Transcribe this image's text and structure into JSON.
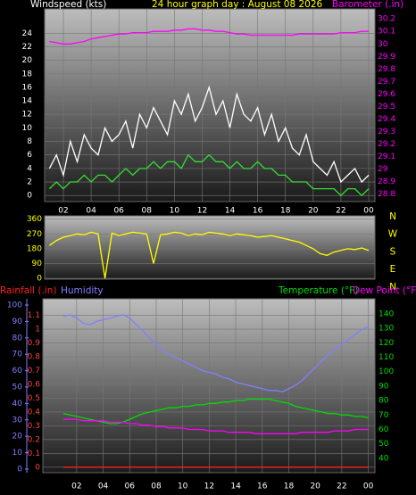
{
  "chart_data": [
    {
      "type": "line",
      "title": "24 hour graph day : August 08 2026",
      "ylabel": "Windspeed (kts)",
      "y2label": "Barometer (.in)",
      "x": [
        1,
        1.5,
        2,
        2.5,
        3,
        3.5,
        4,
        4.5,
        5,
        5.5,
        6,
        6.5,
        7,
        7.5,
        8,
        8.5,
        9,
        9.5,
        10,
        10.5,
        11,
        11.5,
        12,
        12.5,
        13,
        13.5,
        14,
        14.5,
        15,
        15.5,
        16,
        16.5,
        17,
        17.5,
        18,
        18.5,
        19,
        19.5,
        20,
        20.5,
        21,
        21.5,
        22,
        22.5,
        23,
        23.5,
        24
      ],
      "xlim": [
        0.65,
        24.45
      ],
      "xticks": [
        {
          "value": 2,
          "label": "02"
        },
        {
          "value": 4,
          "label": "04"
        },
        {
          "value": 6,
          "label": "06"
        },
        {
          "value": 8,
          "label": "08"
        },
        10,
        12,
        14,
        16,
        18,
        20,
        22,
        {
          "value": 24,
          "label": "00"
        }
      ],
      "ylim": [
        -0.9,
        27.6
      ],
      "yticks": [
        0,
        2,
        4,
        6,
        8,
        10,
        12,
        14,
        16,
        18,
        20,
        22,
        24
      ],
      "y2lim": [
        28.74,
        30.28
      ],
      "y2ticks": [
        28.8,
        28.9,
        29,
        29.1,
        29.2,
        29.3,
        29.4,
        29.5,
        29.6,
        29.7,
        29.8,
        29.9,
        30,
        30.1,
        30.2
      ],
      "grid": true,
      "series": [
        {
          "color": "#ffffff",
          "values": [
            4,
            6,
            3,
            8,
            5,
            9,
            7,
            6,
            10,
            8,
            9,
            11,
            7,
            12,
            10,
            13,
            11,
            9,
            14,
            12,
            15,
            11,
            13,
            16,
            12,
            14,
            10,
            15,
            12,
            11,
            13,
            9,
            12,
            8,
            10,
            7,
            6,
            9,
            5,
            4,
            3,
            5,
            2,
            3,
            4,
            2,
            3
          ]
        },
        {
          "color": "#33dd33",
          "values": [
            1,
            2,
            1,
            2,
            2,
            3,
            2,
            3,
            3,
            2,
            3,
            4,
            3,
            4,
            4,
            5,
            4,
            5,
            5,
            4,
            6,
            5,
            5,
            6,
            5,
            5,
            4,
            5,
            4,
            4,
            5,
            4,
            4,
            3,
            3,
            2,
            2,
            2,
            1,
            1,
            1,
            1,
            0,
            1,
            1,
            0,
            1
          ]
        },
        {
          "color": "#ff00ff",
          "axis": "y2",
          "values": [
            30.02,
            30.01,
            30.0,
            30.0,
            30.01,
            30.02,
            30.04,
            30.05,
            30.06,
            30.07,
            30.08,
            30.08,
            30.09,
            30.09,
            30.09,
            30.1,
            30.1,
            30.1,
            30.11,
            30.11,
            30.12,
            30.12,
            30.11,
            30.11,
            30.1,
            30.1,
            30.09,
            30.08,
            30.08,
            30.07,
            30.07,
            30.07,
            30.07,
            30.07,
            30.07,
            30.07,
            30.08,
            30.08,
            30.08,
            30.08,
            30.08,
            30.08,
            30.09,
            30.09,
            30.09,
            30.1,
            30.1
          ]
        }
      ]
    },
    {
      "type": "line",
      "x": [
        1,
        1.5,
        2,
        2.5,
        3,
        3.5,
        4,
        4.5,
        5,
        5.5,
        6,
        6.5,
        7,
        7.5,
        8,
        8.5,
        9,
        9.5,
        10,
        10.5,
        11,
        11.5,
        12,
        12.5,
        13,
        13.5,
        14,
        14.5,
        15,
        15.5,
        16,
        16.5,
        17,
        17.5,
        18,
        18.5,
        19,
        19.5,
        20,
        20.5,
        21,
        21.5,
        22,
        22.5,
        23,
        23.5,
        24
      ],
      "xlim": [
        0.65,
        24.45
      ],
      "ylim": [
        -5,
        380
      ],
      "yticks": [
        0,
        90,
        180,
        270,
        360
      ],
      "direction_labels": [
        "N",
        "W",
        "S",
        "E",
        "N"
      ],
      "grid": true,
      "series": [
        {
          "color": "#ffff00",
          "values": [
            200,
            230,
            250,
            260,
            270,
            265,
            280,
            270,
            0,
            275,
            260,
            270,
            280,
            275,
            270,
            90,
            265,
            270,
            280,
            275,
            260,
            270,
            265,
            280,
            275,
            270,
            260,
            270,
            265,
            260,
            250,
            255,
            260,
            250,
            240,
            230,
            220,
            200,
            180,
            150,
            140,
            160,
            170,
            180,
            175,
            185,
            170
          ]
        }
      ]
    },
    {
      "type": "line",
      "x": [
        1,
        1.5,
        2,
        2.5,
        3,
        3.5,
        4,
        4.5,
        5,
        5.5,
        6,
        6.5,
        7,
        7.5,
        8,
        8.5,
        9,
        9.5,
        10,
        10.5,
        11,
        11.5,
        12,
        12.5,
        13,
        13.5,
        14,
        14.5,
        15,
        15.5,
        16,
        16.5,
        17,
        17.5,
        18,
        18.5,
        19,
        19.5,
        20,
        20.5,
        21,
        21.5,
        22,
        22.5,
        23,
        23.5,
        24
      ],
      "xlim": [
        -0.55,
        24.5
      ],
      "xticks": [
        {
          "value": 2,
          "label": "02"
        },
        {
          "value": 4,
          "label": "04"
        },
        {
          "value": 6,
          "label": "06"
        },
        {
          "value": 8,
          "label": "08"
        },
        10,
        12,
        14,
        16,
        18,
        20,
        22,
        {
          "value": 24,
          "label": "00"
        }
      ],
      "ylim": [
        -0.04,
        1.22
      ],
      "yticks": [
        0,
        0.1,
        0.2,
        0.3,
        0.4,
        0.5,
        0.6,
        0.7,
        0.8,
        0.9,
        1,
        1.1
      ],
      "y2lim": [
        30,
        150.5
      ],
      "y2ticks": [
        40,
        50,
        60,
        70,
        80,
        90,
        100,
        110,
        120,
        130,
        140
      ],
      "y3lim": [
        -2.2,
        103.8
      ],
      "y3ticks": [
        0,
        10,
        20,
        30,
        40,
        50,
        60,
        70,
        80,
        90,
        100
      ],
      "grid": true,
      "series": [
        {
          "name": "Rainfall (.in)",
          "color": "#ff2020",
          "values": [
            0,
            0,
            0,
            0,
            0,
            0,
            0,
            0,
            0,
            0,
            0,
            0,
            0,
            0,
            0,
            0,
            0,
            0,
            0,
            0,
            0,
            0,
            0,
            0,
            0,
            0,
            0,
            0,
            0,
            0,
            0,
            0,
            0,
            0,
            0,
            0,
            0,
            0,
            0,
            0,
            0,
            0,
            0,
            0,
            0,
            0,
            0
          ]
        },
        {
          "name": "Humidity",
          "color": "#8080ff",
          "axis": "y3",
          "values": [
            93,
            94,
            92,
            89,
            88,
            90,
            91,
            92,
            93,
            94,
            92,
            88,
            84,
            80,
            76,
            72,
            70,
            68,
            66,
            64,
            62,
            60,
            59,
            58,
            56,
            55,
            53,
            52,
            51,
            50,
            49,
            48,
            48,
            47,
            49,
            51,
            54,
            58,
            62,
            66,
            70,
            73,
            76,
            79,
            82,
            85,
            87
          ]
        },
        {
          "name": "Temperature (°F)",
          "color": "#00dd00",
          "axis": "y2",
          "values": [
            71,
            70,
            69,
            68,
            67,
            66,
            65,
            64,
            64,
            65,
            67,
            69,
            71,
            72,
            73,
            74,
            75,
            75,
            76,
            76,
            77,
            77,
            78,
            78,
            79,
            79,
            80,
            80,
            81,
            81,
            81,
            81,
            80,
            79,
            78,
            76,
            75,
            74,
            73,
            72,
            71,
            71,
            70,
            70,
            69,
            69,
            68
          ]
        },
        {
          "name": "Dew Point (°F)",
          "color": "#ff00ff",
          "axis": "y2",
          "values": [
            67,
            67,
            67,
            66,
            66,
            66,
            66,
            65,
            65,
            65,
            64,
            64,
            63,
            63,
            62,
            62,
            61,
            61,
            61,
            60,
            60,
            60,
            59,
            59,
            59,
            58,
            58,
            58,
            58,
            57,
            57,
            57,
            57,
            57,
            57,
            57,
            58,
            58,
            58,
            58,
            58,
            59,
            59,
            59,
            60,
            60,
            60
          ]
        }
      ]
    }
  ]
}
